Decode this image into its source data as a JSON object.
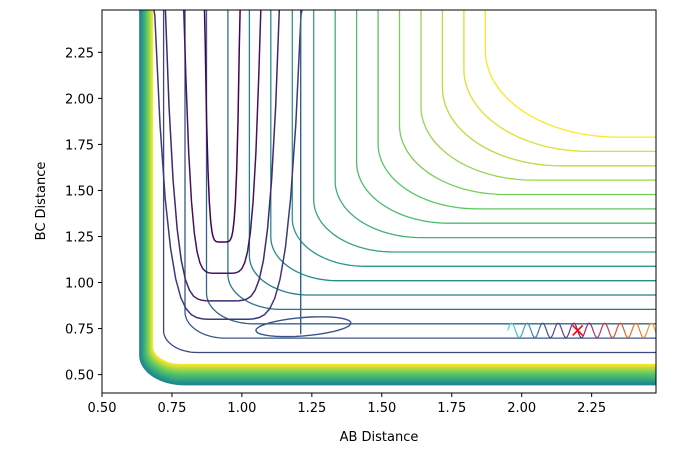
{
  "chart_data": {
    "type": "contour",
    "title": "",
    "xlabel": "AB Distance",
    "ylabel": "BC Distance",
    "xlim": [
      0.5,
      2.48
    ],
    "ylim": [
      0.4,
      2.48
    ],
    "xticks": [
      "0.50",
      "0.75",
      "1.00",
      "1.25",
      "1.50",
      "1.75",
      "2.00",
      "2.25"
    ],
    "xtick_values": [
      0.5,
      0.75,
      1.0,
      1.25,
      1.5,
      1.75,
      2.0,
      2.25
    ],
    "yticks": [
      "0.50",
      "0.75",
      "1.00",
      "1.25",
      "1.50",
      "1.75",
      "2.00",
      "2.25"
    ],
    "ytick_values": [
      0.5,
      0.75,
      1.0,
      1.25,
      1.5,
      1.75,
      2.0,
      2.25
    ],
    "grid": false,
    "colormap": "viridis",
    "colormap_stops": [
      "#440154",
      "#3b528b",
      "#21918c",
      "#5ec962",
      "#fde725"
    ],
    "contour_levels_open": 16,
    "contour_levels_wall": 22,
    "trajectory": {
      "x_range": [
        1.95,
        2.48
      ],
      "y_center": 0.74,
      "y_amplitude": 0.04,
      "colormap": [
        "#40e0d0",
        "#3b528b",
        "#8b1a8b",
        "#e8501a",
        "#f5a623"
      ]
    },
    "marker": {
      "symbol": "x",
      "x": 2.2,
      "y": 0.74,
      "color": "#ff0000"
    }
  }
}
